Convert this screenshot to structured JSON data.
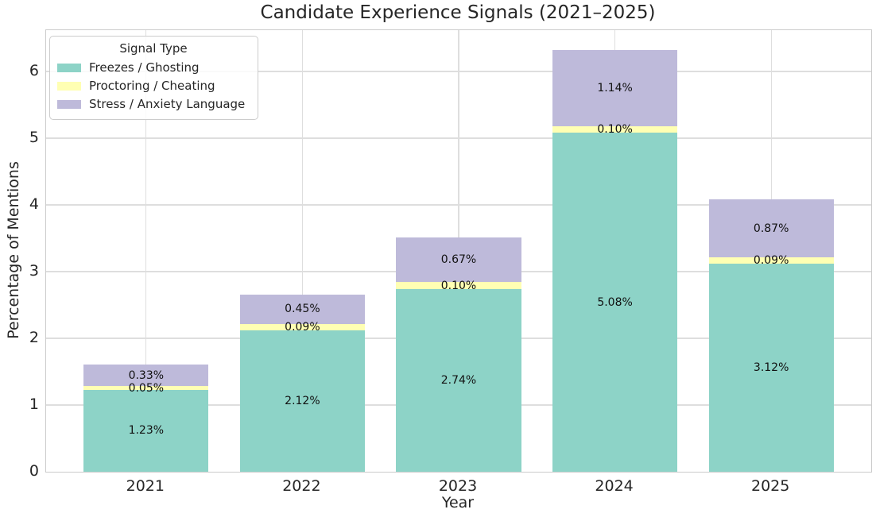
{
  "chart_data": {
    "type": "bar",
    "stacked": true,
    "title": "Candidate Experience Signals (2021–2025)",
    "xlabel": "Year",
    "ylabel": "Percentage of Mentions",
    "categories": [
      "2021",
      "2022",
      "2023",
      "2024",
      "2025"
    ],
    "series": [
      {
        "name": "Freezes / Ghosting",
        "color": "#8dd3c7",
        "values": [
          1.23,
          2.12,
          2.74,
          5.08,
          3.12
        ]
      },
      {
        "name": "Proctoring / Cheating",
        "color": "#ffffb3",
        "values": [
          0.05,
          0.09,
          0.1,
          0.1,
          0.09
        ]
      },
      {
        "name": "Stress / Anxiety Language",
        "color": "#bebada",
        "values": [
          0.33,
          0.45,
          0.67,
          1.14,
          0.87
        ]
      }
    ],
    "segment_labels": [
      [
        "1.23%",
        "2.12%",
        "2.74%",
        "5.08%",
        "3.12%"
      ],
      [
        "0.05%",
        "0.09%",
        "0.10%",
        "0.10%",
        "0.09%"
      ],
      [
        "0.33%",
        "0.45%",
        "0.67%",
        "1.14%",
        "0.87%"
      ]
    ],
    "yticks": [
      0,
      1,
      2,
      3,
      4,
      5,
      6
    ],
    "ylim": [
      0,
      6.62
    ],
    "legend_title": "Signal Type",
    "legend_position": "upper left",
    "grid": true,
    "colors": {
      "grid": "#dedede",
      "spine": "#cbcbcb",
      "text": "#262626",
      "bar_label_text": "#111111",
      "background": "#ffffff"
    }
  }
}
